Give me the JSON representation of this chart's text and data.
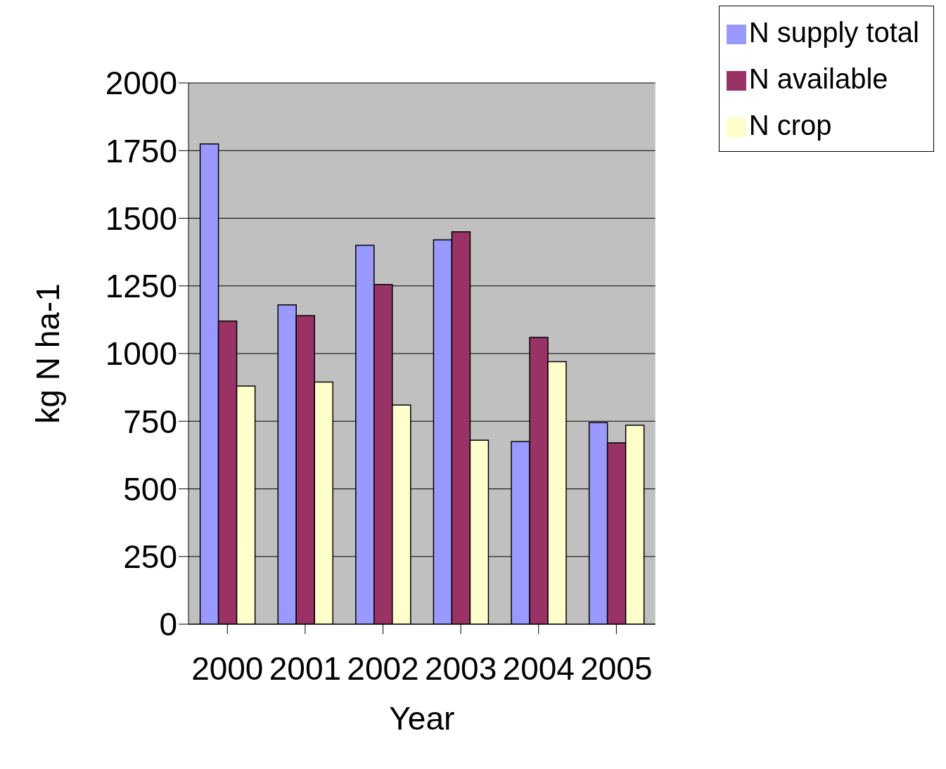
{
  "chart_data": {
    "type": "bar",
    "xlabel": "Year",
    "ylabel": "kg N ha-1",
    "categories": [
      "2000",
      "2001",
      "2002",
      "2003",
      "2004",
      "2005"
    ],
    "series": [
      {
        "name": "N supply total",
        "color": "#9999ff",
        "values": [
          1775,
          1180,
          1400,
          1420,
          675,
          745
        ]
      },
      {
        "name": "N available",
        "color": "#993366",
        "values": [
          1120,
          1140,
          1255,
          1450,
          1060,
          670
        ]
      },
      {
        "name": "N crop",
        "color": "#ffffcc",
        "values": [
          880,
          895,
          810,
          680,
          970,
          735
        ]
      }
    ],
    "ylim": [
      0,
      2000
    ],
    "yticks": [
      0,
      250,
      500,
      750,
      1000,
      1250,
      1500,
      1750,
      2000
    ],
    "grid": "y",
    "legend": "top right"
  }
}
